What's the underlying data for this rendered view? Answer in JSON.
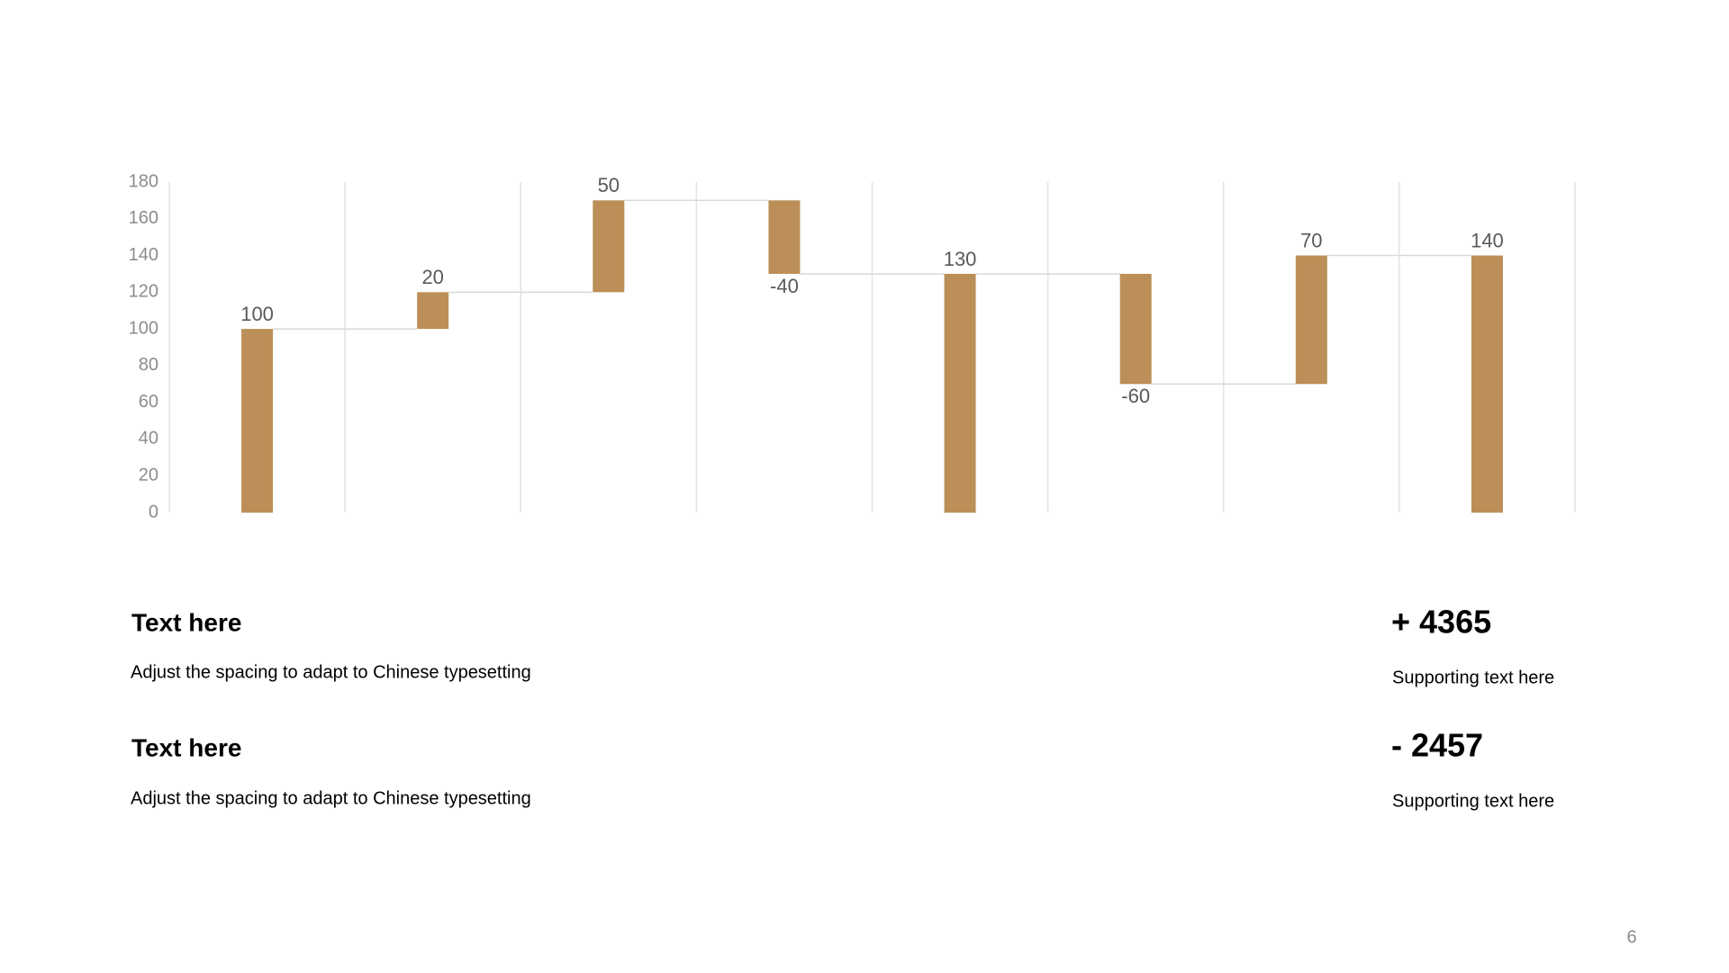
{
  "chart_data": {
    "type": "waterfall",
    "categories": [
      null,
      null,
      null,
      null,
      null,
      null,
      null,
      null
    ],
    "values": [
      100,
      20,
      50,
      -40,
      130,
      -60,
      70,
      140
    ],
    "is_total": [
      false,
      false,
      false,
      false,
      true,
      false,
      false,
      true
    ],
    "color": "#bb8f57",
    "ylim": [
      0,
      180
    ],
    "yticks": [
      0,
      20,
      40,
      60,
      80,
      100,
      120,
      140,
      160,
      180
    ]
  },
  "text_blocks": [
    {
      "title": "Text here",
      "body": "Adjust the spacing to adapt to Chinese typesetting"
    },
    {
      "title": "Text here",
      "body": "Adjust the spacing to adapt to Chinese typesetting"
    }
  ],
  "stats": [
    {
      "value": "+ 4365",
      "label": "Supporting text here"
    },
    {
      "value": "- 2457",
      "label": "Supporting text here"
    }
  ],
  "page_number": "6"
}
